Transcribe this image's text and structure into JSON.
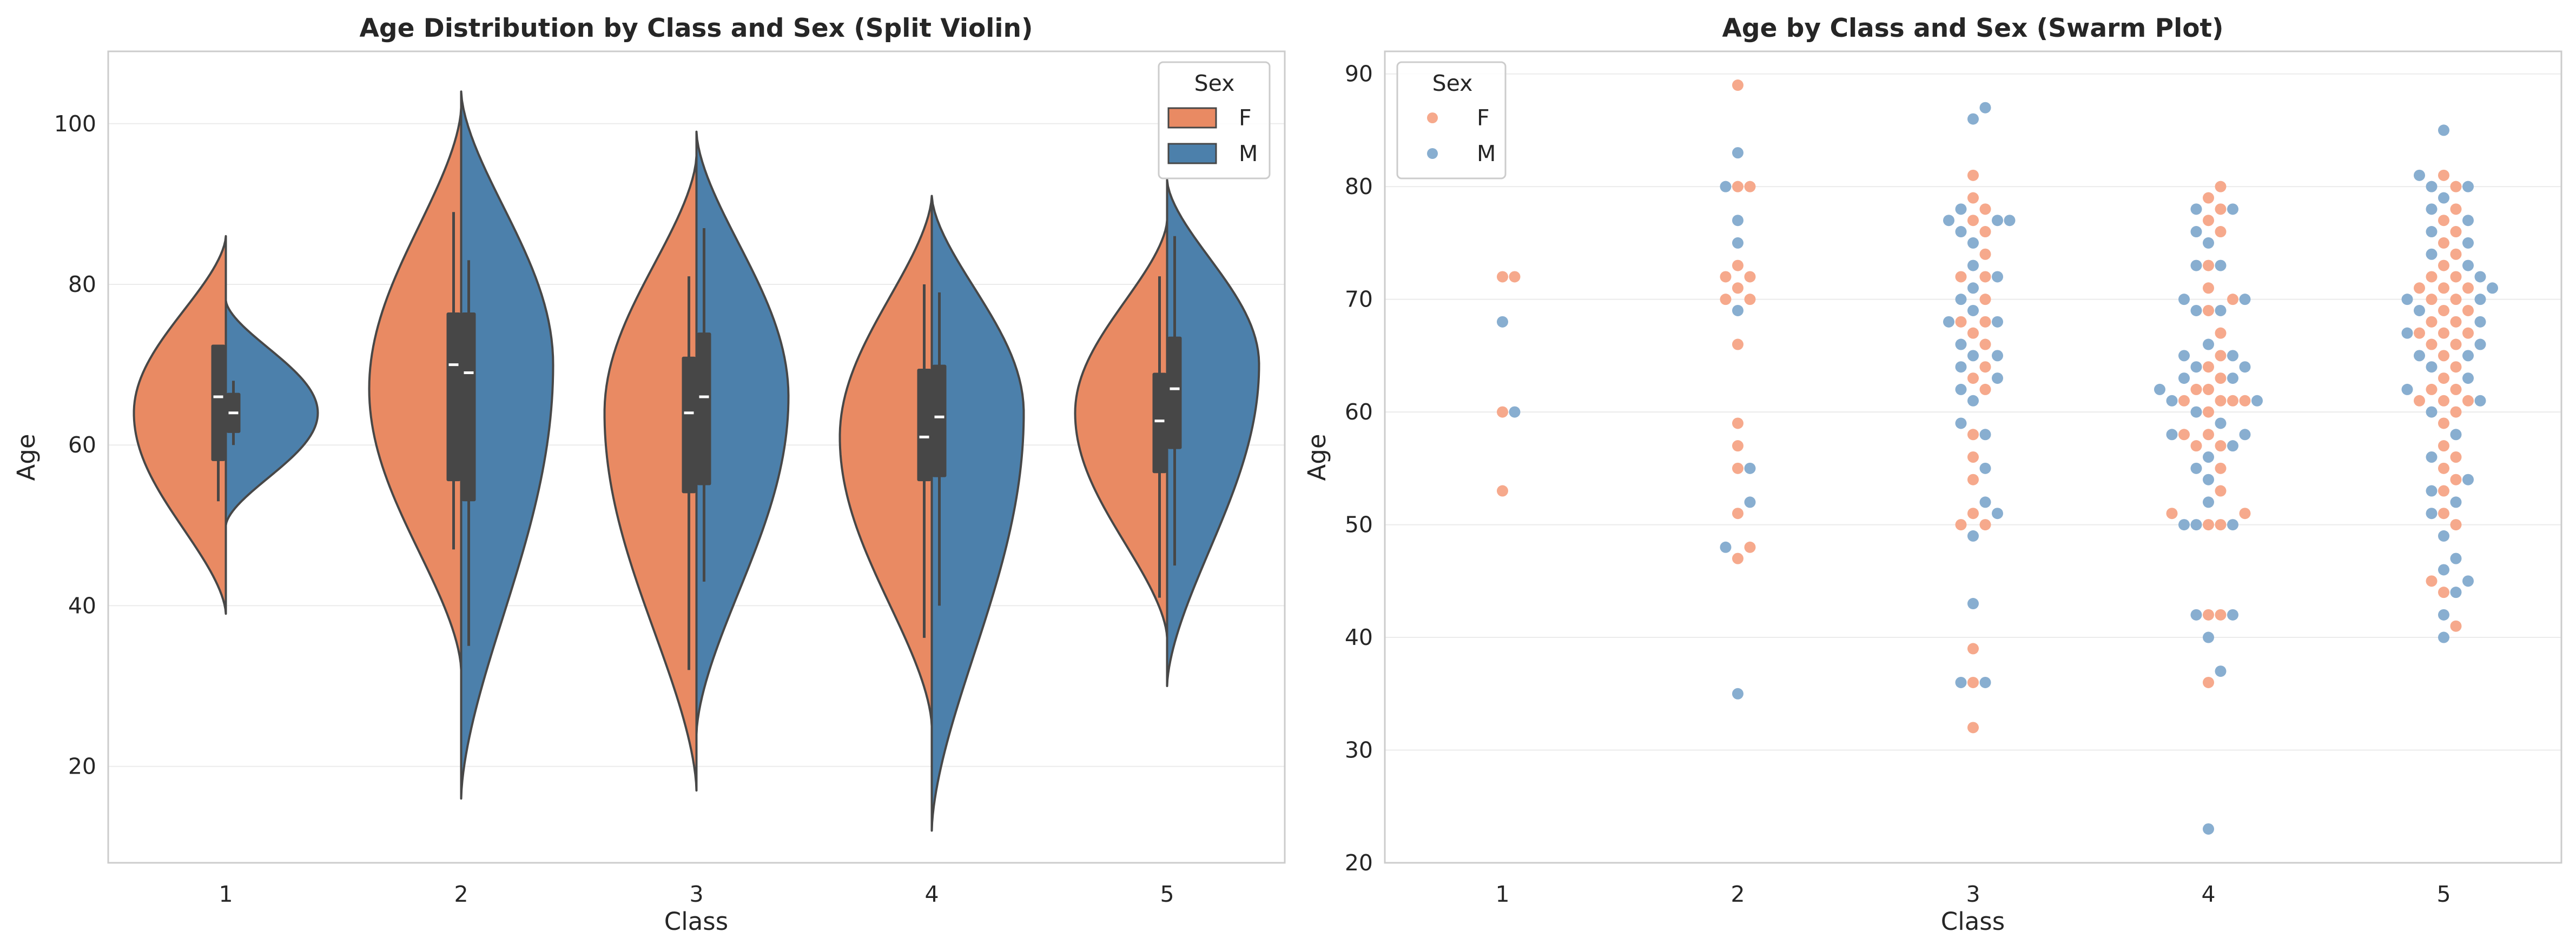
{
  "colors": {
    "female": "#E98A63",
    "male": "#4C80AB",
    "female_point": "#F6A98C",
    "male_point": "#88AED0",
    "box": "#474747",
    "frame": "#CCCCCC",
    "grid": "#EBEBEB"
  },
  "chart_data": [
    {
      "type": "violin",
      "title": "Age Distribution by Class and Sex (Split Violin)",
      "xlabel": "Class",
      "ylabel": "Age",
      "categories": [
        "1",
        "2",
        "3",
        "4",
        "5"
      ],
      "ylim": [
        8,
        109
      ],
      "yticks": [
        20,
        40,
        60,
        80,
        100
      ],
      "grid": "horizontal",
      "legend": {
        "title": "Sex",
        "position": "top-right",
        "entries": [
          "F",
          "M"
        ]
      },
      "series": [
        {
          "name": "F",
          "violins": [
            {
              "min": 39,
              "max": 86,
              "mode": 64,
              "q1": 58,
              "median": 66,
              "q3": 72.5,
              "wlo": 53,
              "whi": 72.5
            },
            {
              "min": 32,
              "max": 102,
              "mode": 67,
              "q1": 55.5,
              "median": 70,
              "q3": 76.5,
              "wlo": 47,
              "whi": 89
            },
            {
              "min": 17,
              "max": 96,
              "mode": 64,
              "q1": 54,
              "median": 64,
              "q3": 71,
              "wlo": 32,
              "whi": 81
            },
            {
              "min": 25,
              "max": 91,
              "mode": 61,
              "q1": 55.5,
              "median": 61,
              "q3": 69.5,
              "wlo": 36,
              "whi": 80
            },
            {
              "min": 36,
              "max": 88,
              "mode": 64,
              "q1": 56.5,
              "median": 63,
              "q3": 69,
              "wlo": 41,
              "whi": 81
            }
          ]
        },
        {
          "name": "M",
          "violins": [
            {
              "min": 50,
              "max": 78,
              "mode": 64,
              "q1": 61.5,
              "median": 64,
              "q3": 66.5,
              "wlo": 60,
              "whi": 68
            },
            {
              "min": 16,
              "max": 104,
              "mode": 70,
              "q1": 53,
              "median": 69,
              "q3": 76.5,
              "wlo": 35,
              "whi": 83
            },
            {
              "min": 24,
              "max": 99,
              "mode": 66,
              "q1": 55,
              "median": 66,
              "q3": 74,
              "wlo": 43,
              "whi": 87
            },
            {
              "min": 12,
              "max": 91,
              "mode": 64,
              "q1": 56,
              "median": 63.5,
              "q3": 70,
              "wlo": 40,
              "whi": 79
            },
            {
              "min": 30,
              "max": 93,
              "mode": 70,
              "q1": 59.5,
              "median": 67,
              "q3": 73.5,
              "wlo": 45,
              "whi": 86
            }
          ]
        }
      ]
    },
    {
      "type": "swarm",
      "title": "Age by Class and Sex (Swarm Plot)",
      "xlabel": "Class",
      "ylabel": "Age",
      "categories": [
        "1",
        "2",
        "3",
        "4",
        "5"
      ],
      "ylim": [
        20,
        92
      ],
      "yticks": [
        20,
        30,
        40,
        50,
        60,
        70,
        80,
        90
      ],
      "grid": "horizontal",
      "legend": {
        "title": "Sex",
        "position": "top-left",
        "entries": [
          "F",
          "M"
        ]
      },
      "series": [
        {
          "name": "F",
          "points": [
            [
              [
                53,
                60,
                72,
                72
              ]
            ],
            [
              [
                47,
                48,
                51,
                55,
                57,
                59,
                66,
                70,
                70,
                71,
                72,
                72,
                73,
                80,
                80,
                89
              ]
            ],
            [
              [
                32,
                36,
                39,
                50,
                50,
                51,
                54,
                56,
                58,
                62,
                63,
                64,
                66,
                67,
                68,
                68,
                70,
                72,
                72,
                74,
                76,
                77,
                78,
                79,
                81
              ]
            ],
            [
              [
                36,
                42,
                42,
                50,
                50,
                51,
                51,
                53,
                55,
                57,
                57,
                58,
                58,
                60,
                61,
                61,
                61,
                61,
                62,
                62,
                63,
                64,
                65,
                67,
                69,
                70,
                71,
                73,
                76,
                77,
                78,
                79,
                80
              ]
            ],
            [
              [
                41,
                44,
                45,
                50,
                51,
                53,
                54,
                55,
                56,
                57,
                59,
                60,
                61,
                61,
                61,
                62,
                62,
                63,
                64,
                65,
                66,
                66,
                67,
                67,
                67,
                68,
                68,
                69,
                69,
                70,
                70,
                71,
                71,
                71,
                72,
                72,
                73,
                74,
                75,
                76,
                77,
                78,
                80,
                81
              ]
            ]
          ]
        },
        {
          "name": "M",
          "points": [
            [
              [
                60,
                68
              ]
            ],
            [
              [
                35,
                48,
                52,
                55,
                69,
                75,
                77,
                80,
                83
              ]
            ],
            [
              [
                36,
                36,
                43,
                49,
                51,
                52,
                55,
                58,
                59,
                61,
                62,
                63,
                64,
                65,
                65,
                66,
                68,
                68,
                69,
                70,
                71,
                72,
                73,
                75,
                76,
                77,
                77,
                77,
                78,
                86,
                87
              ]
            ],
            [
              [
                23,
                37,
                40,
                42,
                42,
                50,
                50,
                50,
                52,
                54,
                55,
                56,
                57,
                58,
                58,
                59,
                60,
                61,
                61,
                62,
                63,
                63,
                64,
                64,
                65,
                65,
                66,
                69,
                69,
                70,
                70,
                73,
                73,
                75,
                76,
                78,
                78
              ]
            ],
            [
              [
                40,
                42,
                44,
                45,
                46,
                47,
                49,
                51,
                52,
                53,
                54,
                56,
                58,
                60,
                61,
                62,
                63,
                64,
                65,
                65,
                66,
                67,
                68,
                69,
                70,
                70,
                71,
                72,
                73,
                74,
                75,
                76,
                77,
                78,
                79,
                80,
                80,
                81,
                85
              ]
            ]
          ]
        }
      ]
    }
  ]
}
